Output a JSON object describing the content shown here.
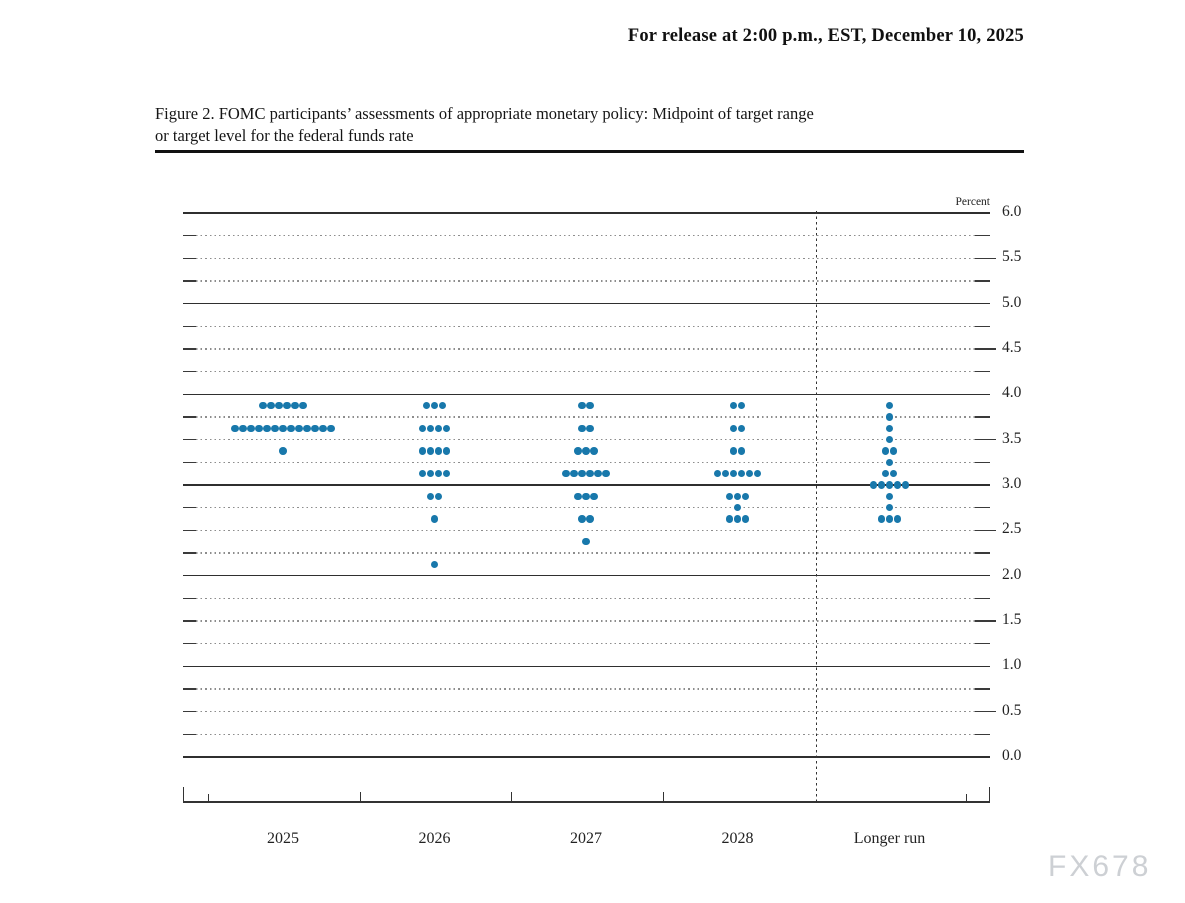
{
  "release_line": "For release at 2:00 p.m., EST, December 10, 2025",
  "caption": {
    "line1": "Figure 2. FOMC participants’ assessments of appropriate monetary policy: Midpoint of target range",
    "line2": "or target level for the federal funds rate"
  },
  "watermark": "FX678",
  "chart_data": {
    "type": "scatter",
    "title": "FOMC participants’ assessments of appropriate monetary policy: Midpoint of target range or target level for the federal funds rate",
    "ylabel": "Percent",
    "ylim": [
      0.0,
      6.0
    ],
    "ytick_label_step": 0.5,
    "grid_major_step": 1.0,
    "grid_minor_step": 0.25,
    "grid": true,
    "legend_position": "none",
    "dot_color": "#1878AB",
    "categories": [
      "2025",
      "2026",
      "2027",
      "2028",
      "Longer run"
    ],
    "separator_after_column": "2028",
    "columns": [
      {
        "label": "2025",
        "dots": [
          {
            "rate": 3.875,
            "count": 6
          },
          {
            "rate": 3.625,
            "count": 13
          },
          {
            "rate": 3.375,
            "count": 1
          }
        ]
      },
      {
        "label": "2026",
        "dots": [
          {
            "rate": 3.875,
            "count": 3
          },
          {
            "rate": 3.625,
            "count": 4
          },
          {
            "rate": 3.375,
            "count": 4
          },
          {
            "rate": 3.125,
            "count": 4
          },
          {
            "rate": 2.875,
            "count": 2
          },
          {
            "rate": 2.625,
            "count": 1
          },
          {
            "rate": 2.125,
            "count": 1
          }
        ]
      },
      {
        "label": "2027",
        "dots": [
          {
            "rate": 3.875,
            "count": 2
          },
          {
            "rate": 3.625,
            "count": 2
          },
          {
            "rate": 3.375,
            "count": 3
          },
          {
            "rate": 3.125,
            "count": 6
          },
          {
            "rate": 2.875,
            "count": 3
          },
          {
            "rate": 2.625,
            "count": 2
          },
          {
            "rate": 2.375,
            "count": 1
          }
        ]
      },
      {
        "label": "2028",
        "dots": [
          {
            "rate": 3.875,
            "count": 2
          },
          {
            "rate": 3.625,
            "count": 2
          },
          {
            "rate": 3.375,
            "count": 2
          },
          {
            "rate": 3.125,
            "count": 6
          },
          {
            "rate": 2.875,
            "count": 3
          },
          {
            "rate": 2.75,
            "count": 1
          },
          {
            "rate": 2.625,
            "count": 3
          }
        ]
      },
      {
        "label": "Longer run",
        "dots": [
          {
            "rate": 3.875,
            "count": 1
          },
          {
            "rate": 3.75,
            "count": 1
          },
          {
            "rate": 3.625,
            "count": 1
          },
          {
            "rate": 3.5,
            "count": 1
          },
          {
            "rate": 3.375,
            "count": 2
          },
          {
            "rate": 3.25,
            "count": 1
          },
          {
            "rate": 3.125,
            "count": 2
          },
          {
            "rate": 3.0,
            "count": 5
          },
          {
            "rate": 2.875,
            "count": 1
          },
          {
            "rate": 2.75,
            "count": 1
          },
          {
            "rate": 2.625,
            "count": 3
          }
        ]
      }
    ]
  }
}
